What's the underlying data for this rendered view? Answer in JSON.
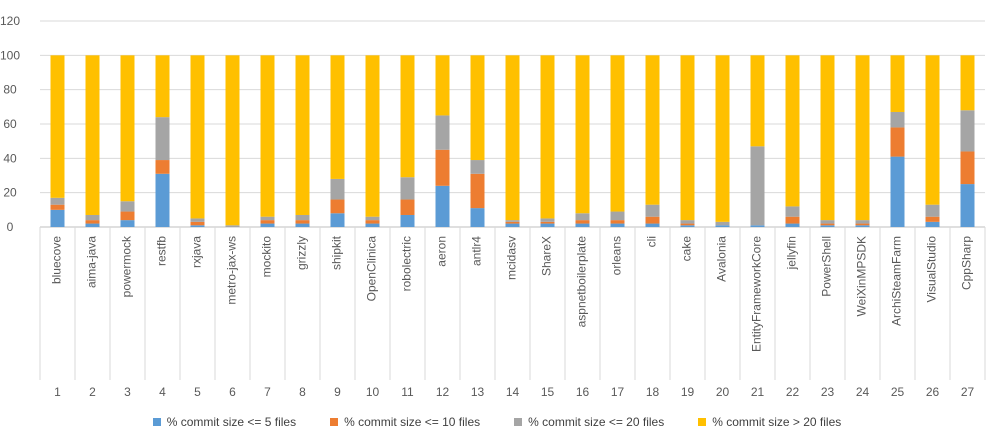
{
  "chart_data": {
    "type": "bar",
    "stacked": true,
    "yticks": [
      0,
      20,
      40,
      60,
      80,
      100,
      120
    ],
    "ylim": [
      0,
      120
    ],
    "grid": true,
    "legend_position": "bottom",
    "categories": [
      "bluecove",
      "aima-java",
      "powermock",
      "restfb",
      "rxjava",
      "metro-jax-ws",
      "mockito",
      "grizzly",
      "shipkit",
      "OpenClinica",
      "robolectric",
      "aeron",
      "antlr4",
      "mcidasv",
      "ShareX",
      "aspnetboilerplate",
      "orleans",
      "cli",
      "cake",
      "Avalonia",
      "EntityFrameworkCore",
      "jellyfin",
      "PowerShell",
      "WeiXinMPSDK",
      "ArchiSteamFarm",
      "VisualStudio",
      "CppSharp"
    ],
    "numbers": [
      "1",
      "2",
      "3",
      "4",
      "5",
      "6",
      "7",
      "8",
      "9",
      "10",
      "11",
      "12",
      "13",
      "14",
      "15",
      "16",
      "17",
      "18",
      "19",
      "20",
      "21",
      "22",
      "23",
      "24",
      "25",
      "26",
      "27"
    ],
    "series": [
      {
        "name": "% commit size <= 5 files",
        "color": "#5B9BD5",
        "values": [
          10,
          2,
          4,
          31,
          1,
          0,
          2,
          2,
          8,
          2,
          7,
          24,
          11,
          2,
          2,
          2,
          2,
          2,
          1,
          1,
          1,
          2,
          1,
          1,
          41,
          3,
          25
        ]
      },
      {
        "name": "% commit size <= 10 files",
        "color": "#ED7D31",
        "values": [
          3,
          2,
          5,
          8,
          2,
          0,
          2,
          2,
          8,
          2,
          9,
          21,
          20,
          1,
          1,
          2,
          2,
          4,
          1,
          0,
          0,
          4,
          1,
          1,
          17,
          3,
          19
        ]
      },
      {
        "name": "% commit size <= 20 files",
        "color": "#A5A5A5",
        "values": [
          4,
          3,
          6,
          25,
          2,
          1,
          2,
          3,
          12,
          2,
          13,
          20,
          8,
          1,
          2,
          4,
          5,
          7,
          2,
          2,
          46,
          6,
          2,
          2,
          9,
          7,
          24
        ]
      },
      {
        "name": "% commit size > 20 files",
        "color": "#FFC000",
        "values": [
          83,
          93,
          85,
          36,
          95,
          99,
          94,
          93,
          72,
          94,
          71,
          35,
          61,
          96,
          95,
          92,
          91,
          87,
          96,
          97,
          53,
          88,
          96,
          96,
          33,
          87,
          32
        ]
      }
    ]
  }
}
